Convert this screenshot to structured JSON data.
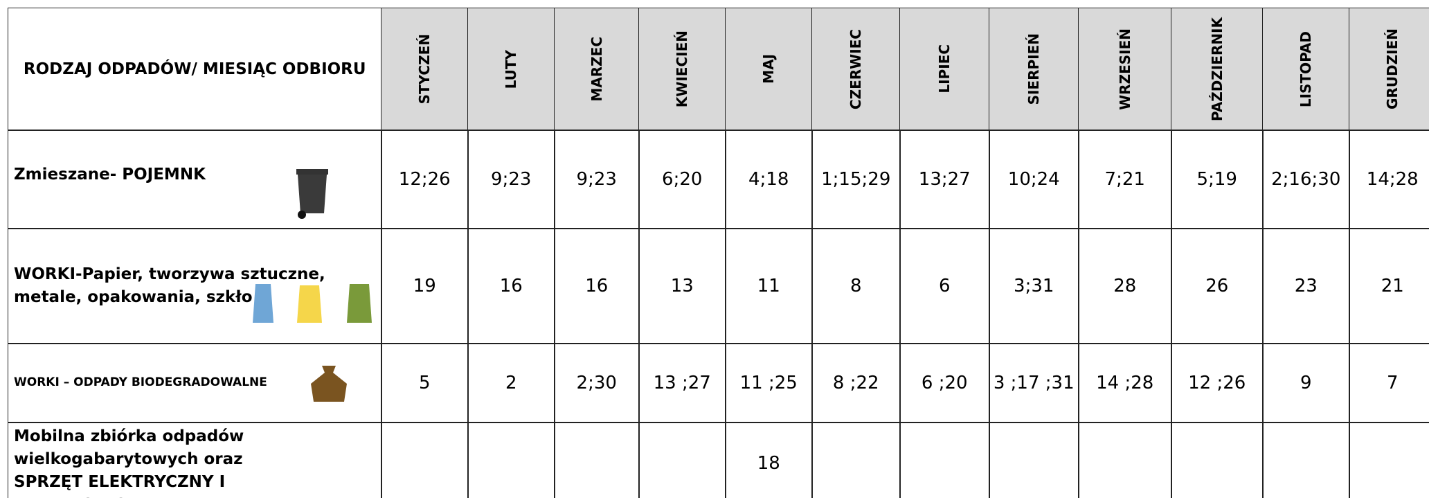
{
  "table": {
    "corner": "RODZAJ ODPADÓW/ MIESIĄC ODBIORU",
    "months": [
      "STYCZEŃ",
      "LUTY",
      "MARZEC",
      "KWIECIEŃ",
      "MAJ",
      "CZERWIEC",
      "LIPIEC",
      "SIERPIEŃ",
      "WRZESIEŃ",
      "PAŹDZIERNIK",
      "LISTOPAD",
      "GRUDZIEŃ"
    ],
    "rows": [
      {
        "label": "Zmieszane- POJEMNK",
        "values": [
          "12;26",
          "9;23",
          "9;23",
          "6;20",
          "4;18",
          "1;15;29",
          "13;27",
          "10;24",
          "7;21",
          "5;19",
          "2;16;30",
          "14;28"
        ]
      },
      {
        "label": "WORKI-Papier, tworzywa sztuczne, metale, opakowania, szkło",
        "values": [
          "19",
          "16",
          "16",
          "13",
          "11",
          "8",
          "6",
          "3;31",
          "28",
          "26",
          "23",
          "21"
        ]
      },
      {
        "label": "WORKI – ODPADY BIODEGRADOWALNE",
        "values": [
          "5",
          "2",
          "2;30",
          "13 ;27",
          "11 ;25",
          "8 ;22",
          "6 ;20",
          "3 ;17 ;31",
          "14 ;28",
          "12 ;26",
          "9",
          "7"
        ]
      },
      {
        "label": "Mobilna zbiórka odpadów wielkogabarytowych oraz SPRZĘT ELEKTRYCZNY I ELEKTRONICZY",
        "values": [
          null,
          null,
          null,
          null,
          "18",
          null,
          null,
          null,
          null,
          null,
          null,
          null
        ]
      }
    ]
  }
}
